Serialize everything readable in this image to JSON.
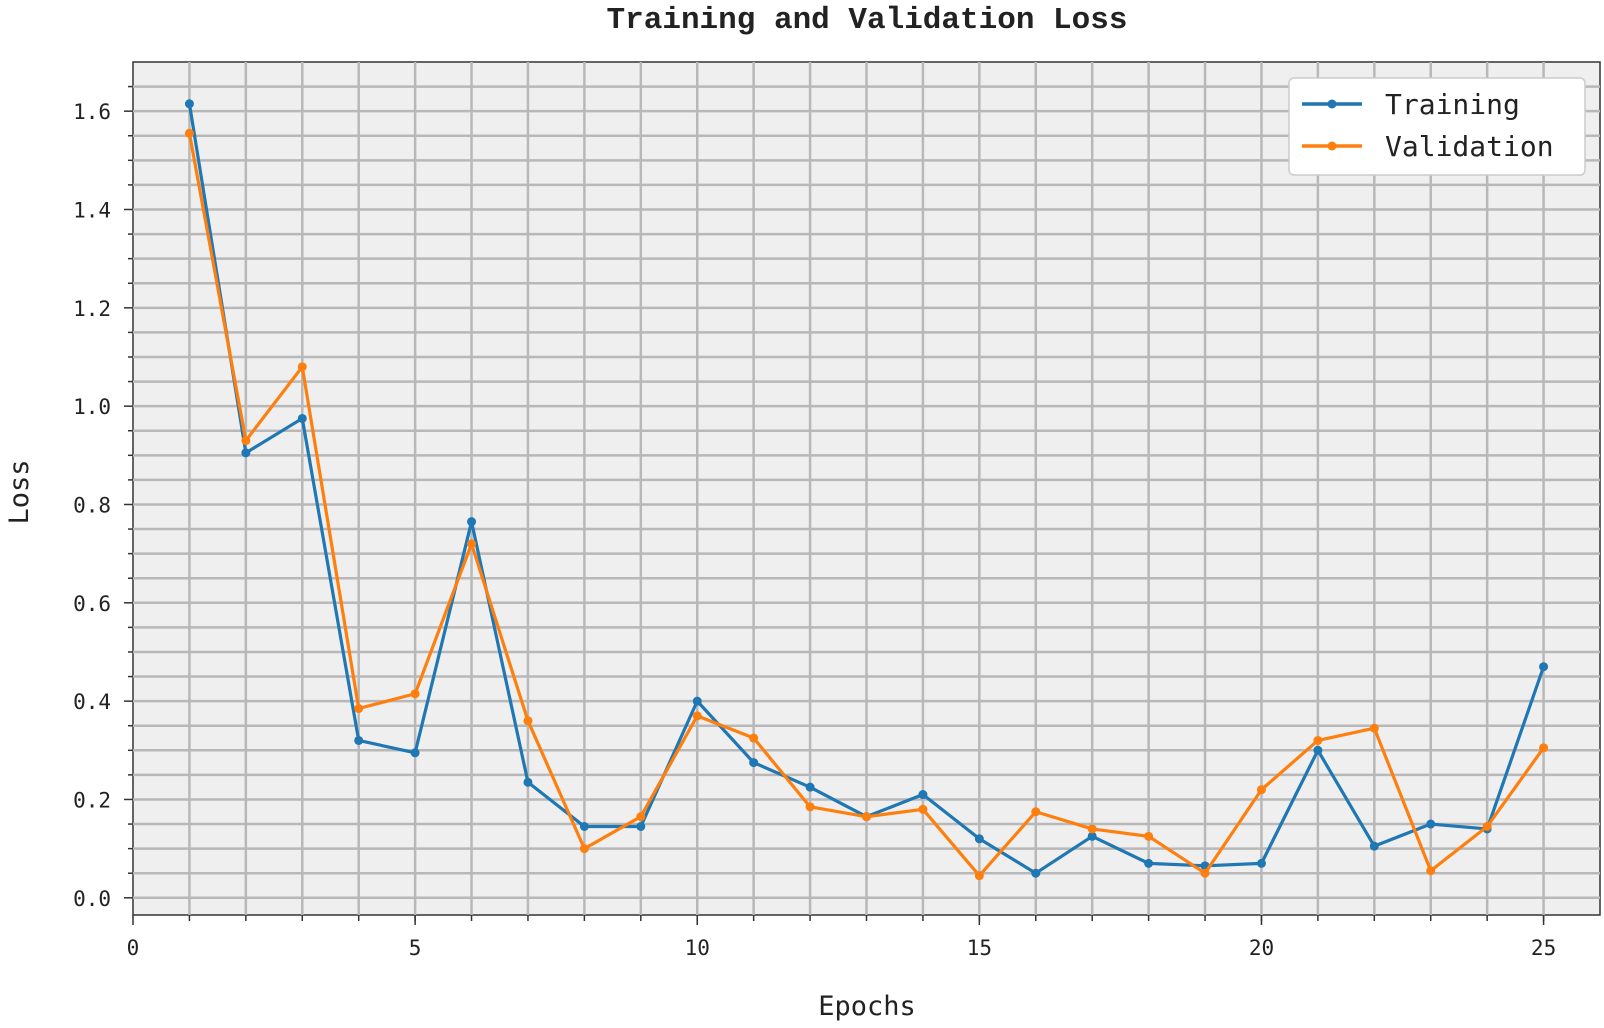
{
  "chart_data": {
    "type": "line",
    "title": "Training and Validation Loss",
    "xlabel": "Epochs",
    "ylabel": "Loss",
    "xlim": [
      0,
      26
    ],
    "ylim": [
      -0.035,
      1.7
    ],
    "x_ticks": [
      0,
      5,
      10,
      15,
      20,
      25
    ],
    "y_ticks": [
      0.0,
      0.2,
      0.4,
      0.6,
      0.8,
      1.0,
      1.2,
      1.4,
      1.6
    ],
    "x_tick_labels": [
      "0",
      "5",
      "10",
      "15",
      "20",
      "25"
    ],
    "y_tick_labels": [
      "0.0",
      "0.2",
      "0.4",
      "0.6",
      "0.8",
      "1.0",
      "1.2",
      "1.4",
      "1.6"
    ],
    "grid": true,
    "legend_position": "top-right",
    "x": [
      1,
      2,
      3,
      4,
      5,
      6,
      7,
      8,
      9,
      10,
      11,
      12,
      13,
      14,
      15,
      16,
      17,
      18,
      19,
      20,
      21,
      22,
      23,
      24,
      25
    ],
    "series": [
      {
        "name": "Training",
        "color": "#1f77b4",
        "values": [
          1.615,
          0.905,
          0.975,
          0.32,
          0.295,
          0.765,
          0.235,
          0.145,
          0.145,
          0.4,
          0.275,
          0.225,
          0.165,
          0.21,
          0.12,
          0.05,
          0.125,
          0.07,
          0.065,
          0.07,
          0.3,
          0.105,
          0.15,
          0.14,
          0.47
        ]
      },
      {
        "name": "Validation",
        "color": "#ff7f0e",
        "values": [
          1.555,
          0.93,
          1.08,
          0.385,
          0.415,
          0.72,
          0.36,
          0.1,
          0.165,
          0.37,
          0.325,
          0.185,
          0.165,
          0.18,
          0.045,
          0.175,
          0.14,
          0.125,
          0.05,
          0.22,
          0.32,
          0.345,
          0.055,
          0.145,
          0.305
        ]
      }
    ]
  }
}
